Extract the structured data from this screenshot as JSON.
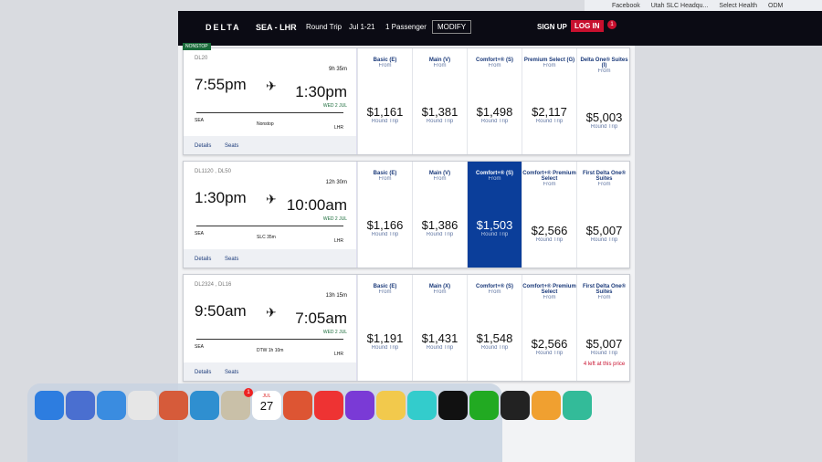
{
  "browser": {
    "bookmarks": [
      "Facebook",
      "Utah SLC Headqu...",
      "Select Health",
      "ODM"
    ]
  },
  "header": {
    "logo": "DELTA",
    "route": "SEA - LHR",
    "trip": "Round Trip",
    "dates": "Jul 1-21",
    "passengers": "1 Passenger",
    "modify": "MODIFY",
    "sign_up": "SIGN UP",
    "log_in": "LOG IN",
    "notifications": "1"
  },
  "flights": [
    {
      "badge": "NONSTOP",
      "flight": "DL20",
      "duration": "9h 35m",
      "depart": "7:55pm",
      "arrive": "1:30pm",
      "arrive_note": "WED 2 JUL",
      "origin": "SEA",
      "dest": "LHR",
      "stop": "Nonstop",
      "details": "Details",
      "seats": "Seats",
      "fares": [
        {
          "cabin": "Basic (E)",
          "from": "From",
          "price": "$1,161",
          "trip": "Round Trip"
        },
        {
          "cabin": "Main (V)",
          "from": "From",
          "price": "$1,381",
          "trip": "Round Trip"
        },
        {
          "cabin": "Comfort+® (S)",
          "from": "From",
          "price": "$1,498",
          "trip": "Round Trip"
        },
        {
          "cabin": "Premium Select (G)",
          "from": "From",
          "price": "$2,117",
          "trip": "Round Trip"
        },
        {
          "cabin": "Delta One® Suites (I)",
          "from": "From",
          "price": "$5,003",
          "trip": "Round Trip"
        }
      ]
    },
    {
      "flight": "DL1120 , DL50",
      "duration": "12h 30m",
      "depart": "1:30pm",
      "arrive": "10:00am",
      "arrive_note": "WED 2 JUL",
      "origin": "SEA",
      "dest": "LHR",
      "stop": "SLC 35m",
      "details": "Details",
      "seats": "Seats",
      "selected": 2,
      "fares": [
        {
          "cabin": "Basic (E)",
          "from": "From",
          "price": "$1,166",
          "trip": "Round Trip"
        },
        {
          "cabin": "Main (V)",
          "from": "From",
          "price": "$1,386",
          "trip": "Round Trip"
        },
        {
          "cabin": "Comfort+® (S)",
          "from": "From",
          "price": "$1,503",
          "trip": "Round Trip"
        },
        {
          "cabin": "Comfort+® Premium Select",
          "from": "From",
          "price": "$2,566",
          "trip": "Round Trip"
        },
        {
          "cabin": "First Delta One® Suites",
          "from": "From",
          "price": "$5,007",
          "trip": "Round Trip"
        }
      ]
    },
    {
      "flight": "DL2324 , DL16",
      "duration": "13h 15m",
      "depart": "9:50am",
      "arrive": "7:05am",
      "arrive_note": "WED 2 JUL",
      "origin": "SEA",
      "dest": "LHR",
      "stop": "DTW 1h 10m",
      "details": "Details",
      "seats": "Seats",
      "fares": [
        {
          "cabin": "Basic (E)",
          "from": "From",
          "price": "$1,191",
          "trip": "Round Trip"
        },
        {
          "cabin": "Main (X)",
          "from": "From",
          "price": "$1,431",
          "trip": "Round Trip"
        },
        {
          "cabin": "Comfort+® (S)",
          "from": "From",
          "price": "$1,548",
          "trip": "Round Trip"
        },
        {
          "cabin": "Comfort+® Premium Select",
          "from": "From",
          "price": "$2,566",
          "trip": "Round Trip"
        },
        {
          "cabin": "First Delta One® Suites",
          "from": "From",
          "price": "$5,007",
          "trip": "Round Trip",
          "note": "4 left at this price"
        }
      ]
    }
  ],
  "dock": {
    "calendar_month": "JUL",
    "calendar_day": "27",
    "badge": "1"
  }
}
